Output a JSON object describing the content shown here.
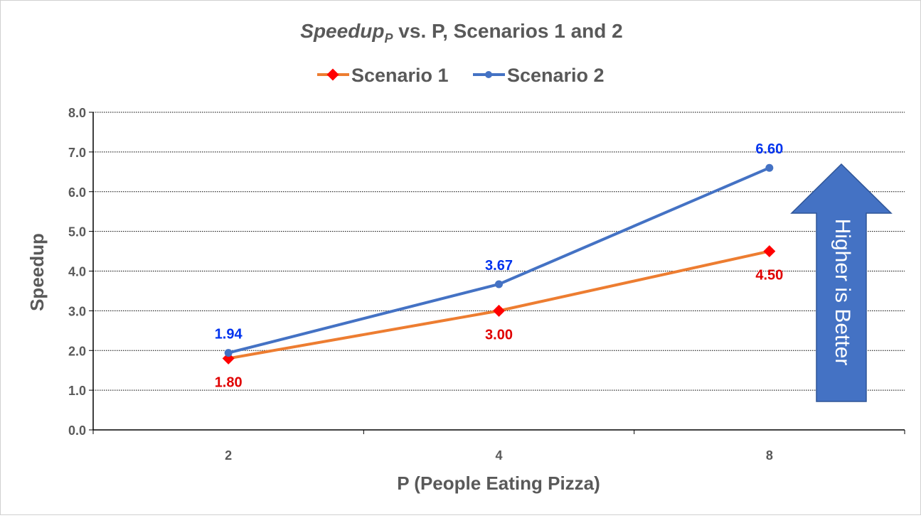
{
  "chart_data": {
    "type": "line",
    "title": {
      "italic_main": "Speedup",
      "subscript": "P",
      "rest": " vs. P, Scenarios 1 and 2"
    },
    "xlabel": "P (People Eating Pizza)",
    "ylabel": "Speedup",
    "categories": [
      "2",
      "4",
      "8"
    ],
    "ylim": [
      0,
      8
    ],
    "yticks": [
      "0.0",
      "1.0",
      "2.0",
      "3.0",
      "4.0",
      "5.0",
      "6.0",
      "7.0",
      "8.0"
    ],
    "grid": true,
    "legend_position": "top",
    "series": [
      {
        "name": "Scenario 1",
        "values": [
          1.8,
          3.0,
          4.5
        ],
        "labels": [
          "1.80",
          "3.00",
          "4.50"
        ],
        "line_color": "#ed7d31",
        "marker_color": "#ff0000",
        "label_color": "#e00000",
        "marker": "diamond"
      },
      {
        "name": "Scenario 2",
        "values": [
          1.94,
          3.67,
          6.6
        ],
        "labels": [
          "1.94",
          "3.67",
          "6.60"
        ],
        "line_color": "#4472c4",
        "marker_color": "#4472c4",
        "label_color": "#0033ee",
        "marker": "circle"
      }
    ],
    "annotation": {
      "text": "Higher is Better",
      "fill": "#4472c4",
      "stroke": "#2f5597",
      "text_color": "#ffffff"
    }
  }
}
